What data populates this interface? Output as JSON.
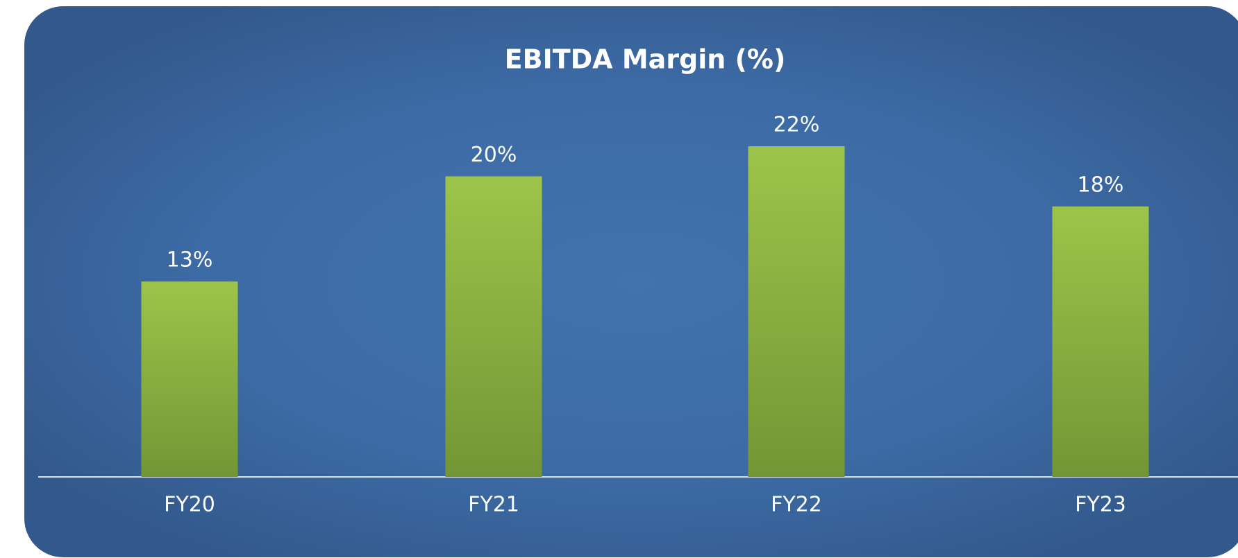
{
  "chart_data": {
    "type": "bar",
    "title": "EBITDA Margin (%)",
    "categories": [
      "FY20",
      "FY21",
      "FY22",
      "FY23"
    ],
    "values": [
      13,
      20,
      22,
      18
    ],
    "value_labels": [
      "13%",
      "20%",
      "22%",
      "18%"
    ],
    "color": "#9dc44a",
    "ylim": [
      0,
      25
    ]
  }
}
